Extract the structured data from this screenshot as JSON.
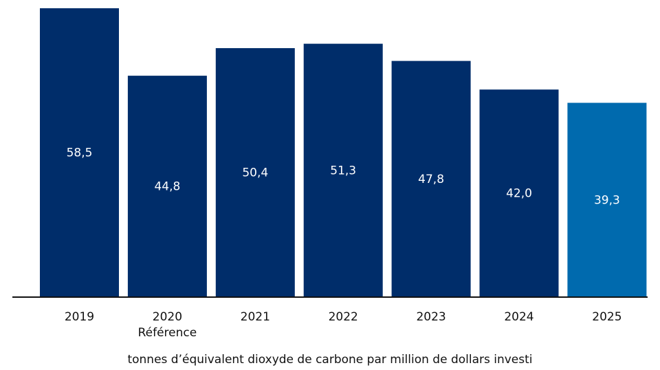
{
  "chart_data": {
    "type": "bar",
    "categories": [
      "2019",
      "2020",
      "2021",
      "2022",
      "2023",
      "2024",
      "2025"
    ],
    "category_sublabels": [
      "",
      "Référence",
      "",
      "",
      "",
      "",
      ""
    ],
    "values": [
      58.5,
      44.8,
      50.4,
      51.3,
      47.8,
      42.0,
      39.3
    ],
    "value_labels": [
      "58,5",
      "44,8",
      "50,4",
      "51,3",
      "47,8",
      "42,0",
      "39,3"
    ],
    "bar_colors": [
      "#002d6a",
      "#002d6a",
      "#002d6a",
      "#002d6a",
      "#002d6a",
      "#002d6a",
      "#006aae"
    ],
    "title": "",
    "xlabel": "tonnes d’équivalent dioxyde de carbone par million de dollars investi",
    "ylabel": "",
    "ylim": [
      0,
      58.5
    ],
    "grid": false,
    "legend": "none"
  }
}
